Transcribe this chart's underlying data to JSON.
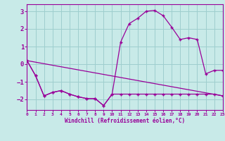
{
  "xlabel": "Windchill (Refroidissement éolien,°C)",
  "bg_color": "#c8eae8",
  "line_color": "#990099",
  "grid_color": "#9ecece",
  "xlim": [
    0,
    23
  ],
  "ylim": [
    -2.6,
    3.4
  ],
  "yticks": [
    -2,
    -1,
    0,
    1,
    2,
    3
  ],
  "xticks": [
    0,
    1,
    2,
    3,
    4,
    5,
    6,
    7,
    8,
    9,
    10,
    11,
    12,
    13,
    14,
    15,
    16,
    17,
    18,
    19,
    20,
    21,
    22,
    23
  ],
  "curve1_x": [
    0,
    1,
    2,
    3,
    4,
    5,
    6,
    7,
    8,
    9,
    10,
    11,
    12,
    13,
    14,
    15,
    16,
    17,
    18,
    19,
    20,
    21,
    22,
    23
  ],
  "curve1_y": [
    0.2,
    -0.65,
    -1.8,
    -1.6,
    -1.5,
    -1.7,
    -1.85,
    -1.95,
    -1.95,
    -2.35,
    -1.7,
    1.25,
    2.3,
    2.6,
    3.0,
    3.05,
    2.75,
    2.1,
    1.4,
    1.5,
    1.4,
    -0.55,
    -0.35,
    -0.35
  ],
  "curve2_x": [
    0,
    1,
    2,
    3,
    4,
    5,
    6,
    7,
    8,
    9,
    10,
    11,
    12,
    13,
    14,
    15,
    16,
    17,
    18,
    19,
    20,
    21,
    22,
    23
  ],
  "curve2_y": [
    0.2,
    -0.65,
    -1.8,
    -1.6,
    -1.5,
    -1.7,
    -1.85,
    -1.95,
    -1.95,
    -2.35,
    -1.7,
    -1.7,
    -1.7,
    -1.7,
    -1.7,
    -1.7,
    -1.7,
    -1.7,
    -1.7,
    -1.7,
    -1.7,
    -1.7,
    -1.7,
    -1.8
  ],
  "curve3_x": [
    0,
    23
  ],
  "curve3_y": [
    0.2,
    -1.8
  ]
}
